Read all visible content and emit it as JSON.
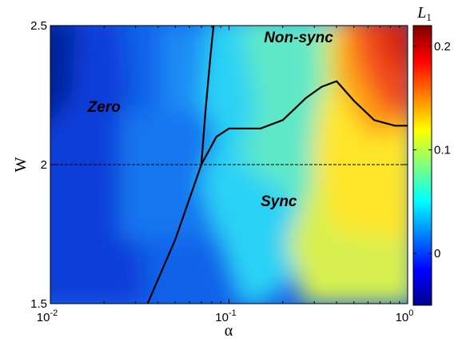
{
  "chart_data": {
    "type": "heatmap",
    "title": "",
    "xlabel": "α",
    "ylabel": "W",
    "xscale": "log",
    "xlim": [
      0.01,
      1
    ],
    "ylim": [
      1.5,
      2.5
    ],
    "x_ticks": [
      {
        "value": 0.01,
        "base": "10",
        "exp": "-2"
      },
      {
        "value": 0.1,
        "base": "10",
        "exp": "-1"
      },
      {
        "value": 1,
        "base": "10",
        "exp": "0"
      }
    ],
    "y_ticks": [
      {
        "value": 1.5,
        "label": "1.5"
      },
      {
        "value": 2,
        "label": "2"
      },
      {
        "value": 2.5,
        "label": "2.5"
      }
    ],
    "colorbar": {
      "label": "L",
      "label_sub": "1",
      "range": [
        -0.05,
        0.22
      ],
      "ticks": [
        {
          "value": 0,
          "label": "0"
        },
        {
          "value": 0.1,
          "label": "0.1"
        },
        {
          "value": 0.2,
          "label": "0.2"
        }
      ],
      "colormap": "jet"
    },
    "regions": [
      {
        "label": "Zero",
        "x": 0.02,
        "y": 2.19
      },
      {
        "label": "Non-sync",
        "x": 0.245,
        "y": 2.44
      },
      {
        "label": "Sync",
        "x": 0.19,
        "y": 1.85
      }
    ],
    "reference_line": {
      "y": 2.0,
      "style": "dashed"
    },
    "boundaries": [
      {
        "name": "zero-boundary",
        "points": [
          [
            0.035,
            1.5
          ],
          [
            0.05,
            1.73
          ],
          [
            0.07,
            2.0
          ],
          [
            0.074,
            2.2
          ],
          [
            0.079,
            2.4
          ],
          [
            0.082,
            2.5
          ]
        ]
      },
      {
        "name": "sync-boundary",
        "points": [
          [
            0.07,
            2.0
          ],
          [
            0.085,
            2.1
          ],
          [
            0.1,
            2.13
          ],
          [
            0.15,
            2.13
          ],
          [
            0.2,
            2.16
          ],
          [
            0.27,
            2.24
          ],
          [
            0.33,
            2.28
          ],
          [
            0.4,
            2.3
          ],
          [
            0.5,
            2.23
          ],
          [
            0.65,
            2.16
          ],
          [
            0.85,
            2.14
          ],
          [
            1.0,
            2.14
          ]
        ]
      }
    ]
  }
}
